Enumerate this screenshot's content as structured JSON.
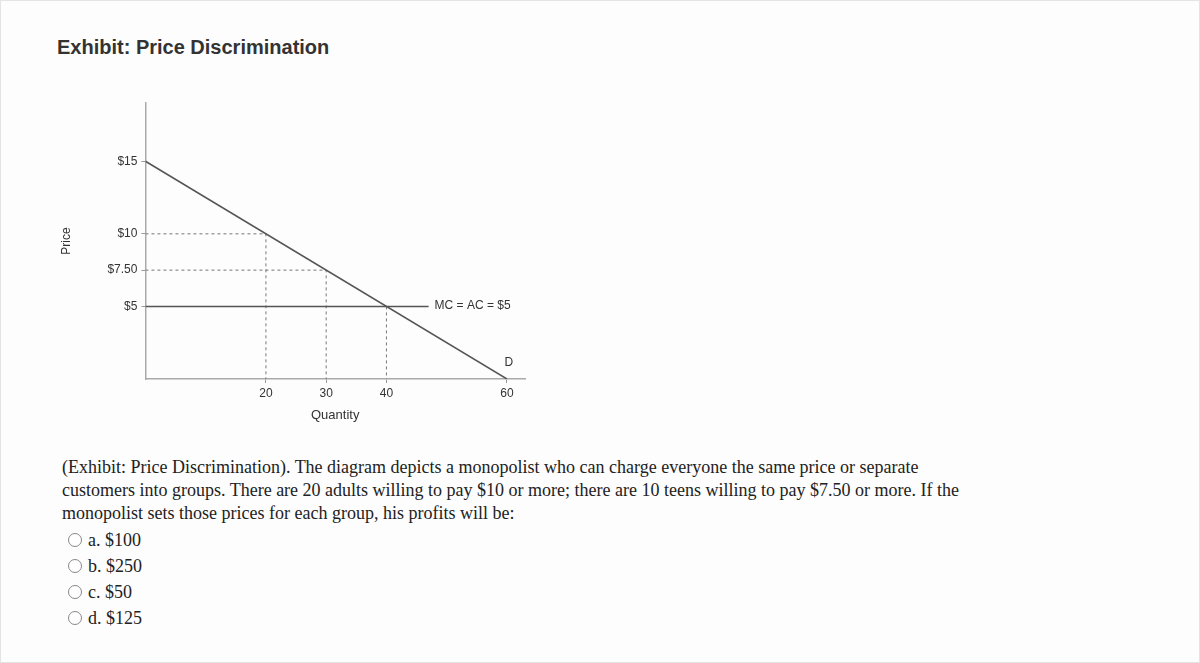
{
  "header": {
    "title": "Exhibit: Price Discrimination"
  },
  "chart_data": {
    "type": "line",
    "x_label": "Quantity",
    "y_label": "Price",
    "xlim": [
      0,
      63
    ],
    "xticks": [
      20,
      30,
      40,
      60
    ],
    "ylim": [
      0,
      19
    ],
    "yticks": [
      {
        "value": 5,
        "label": "$5"
      },
      {
        "value": 7.5,
        "label": "$7.50"
      },
      {
        "value": 10,
        "label": "$10"
      },
      {
        "value": 15,
        "label": "$15"
      }
    ],
    "grid": false,
    "series": [
      {
        "name": "D",
        "color": "#555555",
        "line_style": "solid",
        "x": [
          0,
          60
        ],
        "values": [
          15,
          0
        ]
      },
      {
        "name": "MC = AC = $5",
        "color": "#555555",
        "line_style": "solid",
        "x": [
          0,
          47
        ],
        "values": [
          5,
          5
        ]
      },
      {
        "color": "#777777",
        "line_style": "dashed",
        "x": [
          0,
          20,
          20
        ],
        "values": [
          10,
          10,
          0
        ]
      },
      {
        "color": "#777777",
        "line_style": "dashed",
        "x": [
          0,
          30,
          30
        ],
        "values": [
          7.5,
          7.5,
          0
        ]
      },
      {
        "color": "#777777",
        "line_style": "dashed",
        "x": [
          40,
          40
        ],
        "values": [
          5,
          0
        ]
      }
    ]
  },
  "question": {
    "lines": [
      "(Exhibit: Price Discrimination). The diagram depicts a monopolist who can charge everyone the same price or separate",
      "customers into groups. There are 20 adults willing to pay $10 or more; there are 10 teens willing to pay $7.50 or more. If the",
      "monopolist sets those prices for each group, his profits will be:"
    ]
  },
  "options": [
    "a. $100",
    "b. $250",
    "c. $50",
    "d. $125"
  ]
}
